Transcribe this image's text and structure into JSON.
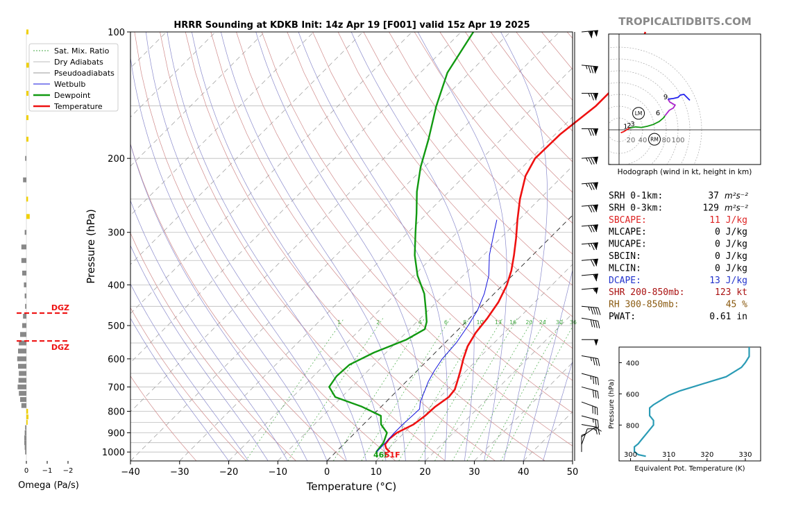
{
  "title": "HRRR Sounding at KDKB Init: 14z Apr 19 [F001] valid 15z Apr 19 2025",
  "site": "TROPICALTIDBITS.COM",
  "colors": {
    "temperature": "#ee1111",
    "dewpoint": "#119911",
    "wetbulb": "#1111dd",
    "dry_adiabat": "#d08a8a",
    "moist_adiabat": "#8a8acc",
    "mixing_ratio": "#44aa44",
    "isobar": "#bbbbbb",
    "dgz": "#ee1111",
    "omega_down": "#888888",
    "omega_up": "#f0d000",
    "theta_e": "#2a9bb5"
  },
  "chart_data": [
    {
      "type": "line",
      "name": "skew-t",
      "xlabel": "Temperature (°C)",
      "ylabel": "Pressure (hPa)",
      "xlim": [
        -40,
        50
      ],
      "ylim": [
        1050,
        100
      ],
      "y_scale": "log",
      "xticks": [
        "−40",
        "−30",
        "−20",
        "−10",
        "0",
        "10",
        "20",
        "30",
        "40",
        "50"
      ],
      "yticks": [
        "100",
        "200",
        "300",
        "400",
        "500",
        "600",
        "700",
        "800",
        "900",
        "1000"
      ],
      "legend_position": "upper-left",
      "legend": [
        "Sat. Mix. Ratio",
        "Dry Adiabats",
        "Pseudoadiabats",
        "Wetbulb",
        "Dewpoint",
        "Temperature"
      ],
      "mixing_ratio_labels": [
        "1",
        "2",
        "4",
        "6",
        "8",
        "10",
        "13",
        "16",
        "20",
        "24",
        "30",
        "36"
      ],
      "surface_label": {
        "dewpoint": "46F",
        "temperature": "51F"
      },
      "series": [
        {
          "name": "Temperature",
          "points": [
            [
              1000,
              11
            ],
            [
              980,
              9.5
            ],
            [
              960,
              8.5
            ],
            [
              930,
              8.2
            ],
            [
              900,
              8.5
            ],
            [
              860,
              10.2
            ],
            [
              820,
              10.8
            ],
            [
              780,
              11.0
            ],
            [
              740,
              11.8
            ],
            [
              710,
              11.5
            ],
            [
              680,
              10.4
            ],
            [
              640,
              8.8
            ],
            [
              600,
              7.0
            ],
            [
              560,
              5.3
            ],
            [
              520,
              4.2
            ],
            [
              480,
              3.6
            ],
            [
              440,
              2.6
            ],
            [
              400,
              0.8
            ],
            [
              370,
              -1.2
            ],
            [
              340,
              -3.8
            ],
            [
              310,
              -6.8
            ],
            [
              280,
              -10.3
            ],
            [
              250,
              -14.0
            ],
            [
              220,
              -17.6
            ],
            [
              200,
              -19.2
            ],
            [
              175,
              -19.0
            ],
            [
              150,
              -17.5
            ],
            [
              130,
              -17.5
            ],
            [
              115,
              -19.0
            ],
            [
              100,
              -22.5
            ]
          ]
        },
        {
          "name": "Dewpoint",
          "points": [
            [
              1000,
              8.2
            ],
            [
              950,
              7.8
            ],
            [
              900,
              6.5
            ],
            [
              860,
              3.6
            ],
            [
              820,
              1.8
            ],
            [
              780,
              -3.9
            ],
            [
              740,
              -11.3
            ],
            [
              700,
              -14.6
            ],
            [
              660,
              -15.3
            ],
            [
              620,
              -15.0
            ],
            [
              580,
              -12.5
            ],
            [
              540,
              -8.5
            ],
            [
              510,
              -6.9
            ],
            [
              490,
              -8.0
            ],
            [
              460,
              -10.5
            ],
            [
              420,
              -14.2
            ],
            [
              380,
              -19.3
            ],
            [
              340,
              -24.0
            ],
            [
              300,
              -28.5
            ],
            [
              270,
              -32.2
            ],
            [
              240,
              -36.5
            ],
            [
              210,
              -40.7
            ],
            [
              180,
              -44.8
            ],
            [
              150,
              -50.0
            ],
            [
              125,
              -54.5
            ],
            [
              100,
              -57.5
            ]
          ]
        },
        {
          "name": "Wetbulb",
          "points": [
            [
              1000,
              8.3
            ],
            [
              950,
              8.2
            ],
            [
              900,
              8.0
            ],
            [
              860,
              8.0
            ],
            [
              820,
              8.2
            ],
            [
              790,
              8.3
            ],
            [
              760,
              7.0
            ],
            [
              720,
              5.8
            ],
            [
              680,
              4.5
            ],
            [
              640,
              3.5
            ],
            [
              600,
              2.7
            ],
            [
              550,
              2.3
            ],
            [
              500,
              1.2
            ],
            [
              460,
              0.0
            ],
            [
              420,
              -2.0
            ],
            [
              380,
              -4.8
            ],
            [
              340,
              -8.8
            ],
            [
              300,
              -12.5
            ],
            [
              280,
              -14.5
            ]
          ]
        }
      ],
      "wind_barbs": [
        {
          "p": 100,
          "spd": 110,
          "dir": 265
        },
        {
          "p": 120,
          "spd": 85,
          "dir": 275
        },
        {
          "p": 140,
          "spd": 75,
          "dir": 270
        },
        {
          "p": 170,
          "spd": 80,
          "dir": 270
        },
        {
          "p": 200,
          "spd": 85,
          "dir": 265
        },
        {
          "p": 230,
          "spd": 85,
          "dir": 265
        },
        {
          "p": 260,
          "spd": 80,
          "dir": 265
        },
        {
          "p": 290,
          "spd": 80,
          "dir": 265
        },
        {
          "p": 320,
          "spd": 75,
          "dir": 265
        },
        {
          "p": 350,
          "spd": 70,
          "dir": 265
        },
        {
          "p": 380,
          "spd": 60,
          "dir": 265
        },
        {
          "p": 410,
          "spd": 55,
          "dir": 265
        },
        {
          "p": 450,
          "spd": 45,
          "dir": 275
        },
        {
          "p": 480,
          "spd": 40,
          "dir": 280
        },
        {
          "p": 540,
          "spd": 50,
          "dir": 270
        },
        {
          "p": 590,
          "spd": 35,
          "dir": 280
        },
        {
          "p": 650,
          "spd": 35,
          "dir": 285
        },
        {
          "p": 700,
          "spd": 30,
          "dir": 285
        },
        {
          "p": 760,
          "spd": 30,
          "dir": 290
        },
        {
          "p": 820,
          "spd": 25,
          "dir": 285
        },
        {
          "p": 860,
          "spd": 20,
          "dir": 280
        },
        {
          "p": 920,
          "spd": 15,
          "dir": 235
        },
        {
          "p": 960,
          "spd": 10,
          "dir": 200
        },
        {
          "p": 1000,
          "spd": 5,
          "dir": 180
        }
      ]
    },
    {
      "type": "bar",
      "name": "omega",
      "xlabel": "Omega (Pa/s)",
      "xticks": [
        "0",
        "−1",
        "−2"
      ],
      "dgz_label": "DGZ",
      "dgz_levels": [
        467,
        544
      ],
      "levels": [
        100,
        120,
        140,
        160,
        180,
        200,
        225,
        250,
        275,
        300,
        325,
        350,
        375,
        400,
        425,
        450,
        475,
        500,
        525,
        550,
        575,
        600,
        625,
        650,
        675,
        700,
        725,
        750,
        775,
        800,
        825,
        850,
        875,
        900,
        925,
        950,
        975,
        1000
      ],
      "values": [
        -0.05,
        -0.1,
        -0.05,
        -0.05,
        -0.05,
        0.03,
        0.08,
        -0.04,
        -0.08,
        0.04,
        0.12,
        0.12,
        0.1,
        0.06,
        0.04,
        0.03,
        0.08,
        0.1,
        0.15,
        0.18,
        0.2,
        0.22,
        0.2,
        0.18,
        0.19,
        0.21,
        0.18,
        0.15,
        0.12,
        -0.04,
        -0.05,
        -0.03,
        0.03,
        0.04,
        0.05,
        0.05,
        0.04,
        0.03
      ]
    },
    {
      "type": "line",
      "name": "hodograph",
      "caption": "Hodograph (wind in kt, height in km)",
      "ring_labels": [
        "20",
        "40",
        "60",
        "80",
        "100"
      ],
      "height_labels": [
        "1",
        "2",
        "3",
        "6",
        "9"
      ],
      "storm_markers": [
        "LM",
        "RM"
      ],
      "segments": [
        {
          "color": "#ee1111",
          "points": [
            [
              3,
              -5
            ],
            [
              8,
              -3
            ],
            [
              13,
              0
            ],
            [
              18,
              3
            ]
          ]
        },
        {
          "color": "#119911",
          "points": [
            [
              18,
              3
            ],
            [
              28,
              5
            ],
            [
              38,
              4
            ],
            [
              48,
              6
            ],
            [
              58,
              9
            ],
            [
              68,
              14
            ],
            [
              75,
              20
            ],
            [
              78,
              24
            ]
          ]
        },
        {
          "color": "#aa22cc",
          "points": [
            [
              78,
              24
            ],
            [
              85,
              33
            ],
            [
              92,
              37
            ],
            [
              95,
              42
            ],
            [
              86,
              47
            ],
            [
              83,
              52
            ]
          ]
        },
        {
          "color": "#2222ee",
          "points": [
            [
              83,
              52
            ],
            [
              92,
              53
            ],
            [
              100,
              55
            ],
            [
              104,
              59
            ],
            [
              110,
              60
            ],
            [
              120,
              50
            ]
          ]
        }
      ],
      "height_points": [
        [
          18,
          3,
          "1"
        ],
        [
          24,
          5,
          "2"
        ],
        [
          30,
          7,
          "3"
        ],
        [
          73,
          26,
          "6"
        ],
        [
          86,
          53,
          "9"
        ]
      ]
    },
    {
      "type": "line",
      "name": "theta-e",
      "xlabel": "Equivalent Pot. Temperature (K)",
      "ylabel": "Pressure (hPa)",
      "xlim": [
        297,
        334
      ],
      "ylim": [
        1030,
        300
      ],
      "xticks": [
        "300",
        "310",
        "320",
        "330"
      ],
      "yticks": [
        "400",
        "600",
        "800"
      ],
      "series": [
        {
          "name": "Theta-E",
          "points": [
            [
              1000,
              304
            ],
            [
              990,
              302
            ],
            [
              970,
              301
            ],
            [
              940,
              301
            ],
            [
              920,
              302
            ],
            [
              890,
              303
            ],
            [
              860,
              304
            ],
            [
              830,
              305
            ],
            [
              800,
              306
            ],
            [
              770,
              306
            ],
            [
              740,
              305
            ],
            [
              710,
              305
            ],
            [
              690,
              305
            ],
            [
              670,
              306
            ],
            [
              640,
              308
            ],
            [
              610,
              310
            ],
            [
              580,
              313
            ],
            [
              550,
              317
            ],
            [
              520,
              321
            ],
            [
              490,
              325
            ],
            [
              460,
              327
            ],
            [
              430,
              329
            ],
            [
              400,
              330
            ],
            [
              360,
              331
            ],
            [
              320,
              331
            ],
            [
              300,
              331
            ]
          ]
        }
      ]
    }
  ],
  "indices": [
    {
      "label": "SRH 0-1km:",
      "value": "37",
      "unit": "m²s⁻²",
      "color": "#000000"
    },
    {
      "label": "SRH 0-3km:",
      "value": "129",
      "unit": "m²s⁻²",
      "color": "#000000"
    },
    {
      "label": "SBCAPE:",
      "value": "11 J/kg",
      "unit": "",
      "color": "#dd2222"
    },
    {
      "label": "MLCAPE:",
      "value": "0 J/kg",
      "unit": "",
      "color": "#000000"
    },
    {
      "label": "MUCAPE:",
      "value": "0 J/kg",
      "unit": "",
      "color": "#000000"
    },
    {
      "label": "SBCIN:",
      "value": "0 J/kg",
      "unit": "",
      "color": "#000000"
    },
    {
      "label": "MLCIN:",
      "value": "0 J/kg",
      "unit": "",
      "color": "#000000"
    },
    {
      "label": "DCAPE:",
      "value": "13 J/kg",
      "unit": "",
      "color": "#2233cc"
    },
    {
      "label": "SHR 200-850mb:",
      "value": "123 kt",
      "unit": "",
      "color": "#aa1111"
    },
    {
      "label": "RH 300-850mb:",
      "value": "45 %",
      "unit": "",
      "color": "#8a5a10"
    },
    {
      "label": "PWAT:",
      "value": "0.61 in",
      "unit": "",
      "color": "#000000"
    }
  ]
}
